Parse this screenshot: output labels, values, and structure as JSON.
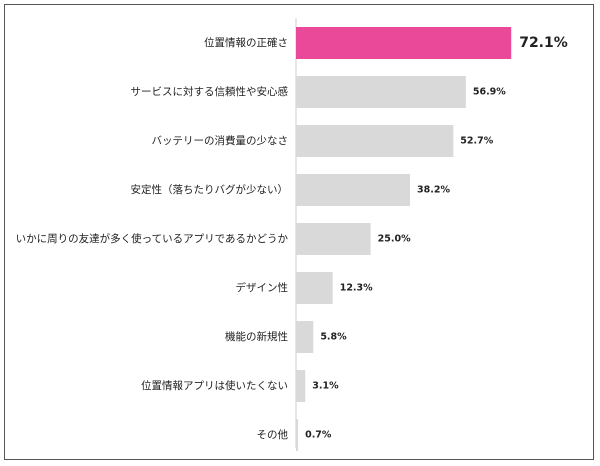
{
  "chart_data": {
    "type": "bar",
    "orientation": "horizontal",
    "categories": [
      "位置情報の正確さ",
      "サービスに対する信頼性や安心感",
      "バッテリーの消費量の少なさ",
      "安定性（落ちたりバグが少ない）",
      "いかに周りの友達が多く使っているアプリであるかどうか",
      "デザイン性",
      "機能の新規性",
      "位置情報アプリは使いたくない",
      "その他"
    ],
    "values": [
      72.1,
      56.9,
      52.7,
      38.2,
      25.0,
      12.3,
      5.8,
      3.1,
      0.7
    ],
    "value_labels": [
      "72.1%",
      "56.9%",
      "52.7%",
      "38.2%",
      "25.0%",
      "12.3%",
      "5.8%",
      "3.1%",
      "0.7%"
    ],
    "xlim": [
      0,
      100
    ],
    "grid": false,
    "legend": "none",
    "colors": {
      "highlight_bar": "#ea4899",
      "bar": "#d9d9d9",
      "highlight_label": "#e0202a",
      "axis": "#cccccc",
      "label": "#222222"
    },
    "highlight_index": 0
  }
}
